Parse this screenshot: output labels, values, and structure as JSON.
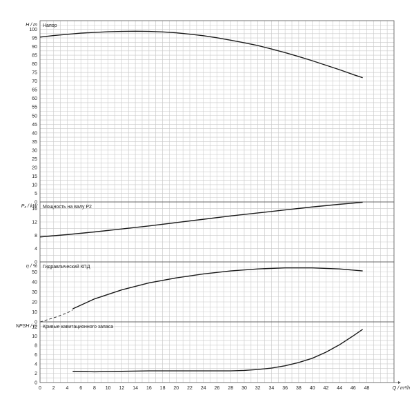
{
  "chart_data": [
    {
      "type": "line",
      "ylabel": "H / m",
      "panel_label": "Напор",
      "ylim": [
        0,
        105
      ],
      "yticks": [
        0,
        5,
        10,
        15,
        20,
        25,
        30,
        35,
        40,
        45,
        50,
        55,
        60,
        65,
        70,
        75,
        80,
        85,
        90,
        95,
        100
      ],
      "series": [
        {
          "style": "solid",
          "x": [
            0,
            2,
            4,
            6,
            8,
            10,
            12,
            14,
            16,
            18,
            20,
            22,
            24,
            26,
            28,
            30,
            32,
            34,
            36,
            38,
            40,
            42,
            44,
            46,
            47.4
          ],
          "y": [
            95.5,
            96.4,
            97.1,
            97.8,
            98.2,
            98.6,
            98.8,
            98.9,
            98.8,
            98.5,
            98.0,
            97.2,
            96.3,
            95.1,
            93.7,
            92.2,
            90.6,
            88.6,
            86.5,
            84.2,
            81.8,
            79.2,
            76.6,
            73.8,
            72.0
          ]
        }
      ]
    },
    {
      "type": "line",
      "ylabel": "P₂ / kW",
      "panel_label": "Мощность на валу P2",
      "ylim": [
        0,
        18
      ],
      "yticks": [
        0,
        4,
        8,
        12,
        16
      ],
      "series": [
        {
          "style": "solid",
          "x": [
            0,
            4,
            8,
            12,
            16,
            20,
            24,
            28,
            32,
            36,
            40,
            44,
            47.4
          ],
          "y": [
            7.5,
            8.2,
            9.0,
            9.9,
            10.8,
            11.8,
            12.8,
            13.8,
            14.7,
            15.6,
            16.5,
            17.3,
            17.9
          ]
        }
      ]
    },
    {
      "type": "line",
      "ylabel": "η / %",
      "panel_label": "Гидравлический КПД",
      "ylim": [
        0,
        60
      ],
      "yticks": [
        0,
        10,
        20,
        30,
        40,
        50
      ],
      "series": [
        {
          "style": "dashed",
          "x": [
            0,
            2,
            4,
            4.8
          ],
          "y": [
            0,
            4,
            9,
            12
          ]
        },
        {
          "style": "solid",
          "x": [
            4.8,
            8,
            12,
            16,
            20,
            24,
            28,
            32,
            36,
            40,
            44,
            47.4
          ],
          "y": [
            13,
            23,
            32,
            39,
            44,
            48,
            51,
            53,
            54,
            54,
            53,
            51
          ]
        }
      ]
    },
    {
      "type": "line",
      "ylabel": "NPSH / m",
      "panel_label": "Кривые кавитационного запаса",
      "ylim": [
        0,
        13
      ],
      "yticks": [
        0,
        2,
        4,
        6,
        8,
        10,
        12
      ],
      "series": [
        {
          "style": "solid",
          "x": [
            4.8,
            8,
            12,
            16,
            20,
            24,
            28,
            30,
            32,
            34,
            36,
            38,
            40,
            42,
            44,
            46,
            47.4
          ],
          "y": [
            2.4,
            2.3,
            2.4,
            2.5,
            2.5,
            2.5,
            2.5,
            2.6,
            2.8,
            3.1,
            3.6,
            4.3,
            5.2,
            6.5,
            8.1,
            10.0,
            11.4
          ]
        }
      ]
    }
  ],
  "x_axis": {
    "label": "Q / m³/h",
    "ticks": [
      0,
      2,
      4,
      6,
      8,
      10,
      12,
      14,
      16,
      18,
      20,
      22,
      24,
      26,
      28,
      30,
      32,
      34,
      36,
      38,
      40,
      42,
      44,
      46,
      48
    ],
    "xlim": [
      0,
      52
    ]
  },
  "colors": {
    "curve": "#1a1a1a",
    "grid": "#c8c8c8",
    "frame": "#555555"
  }
}
